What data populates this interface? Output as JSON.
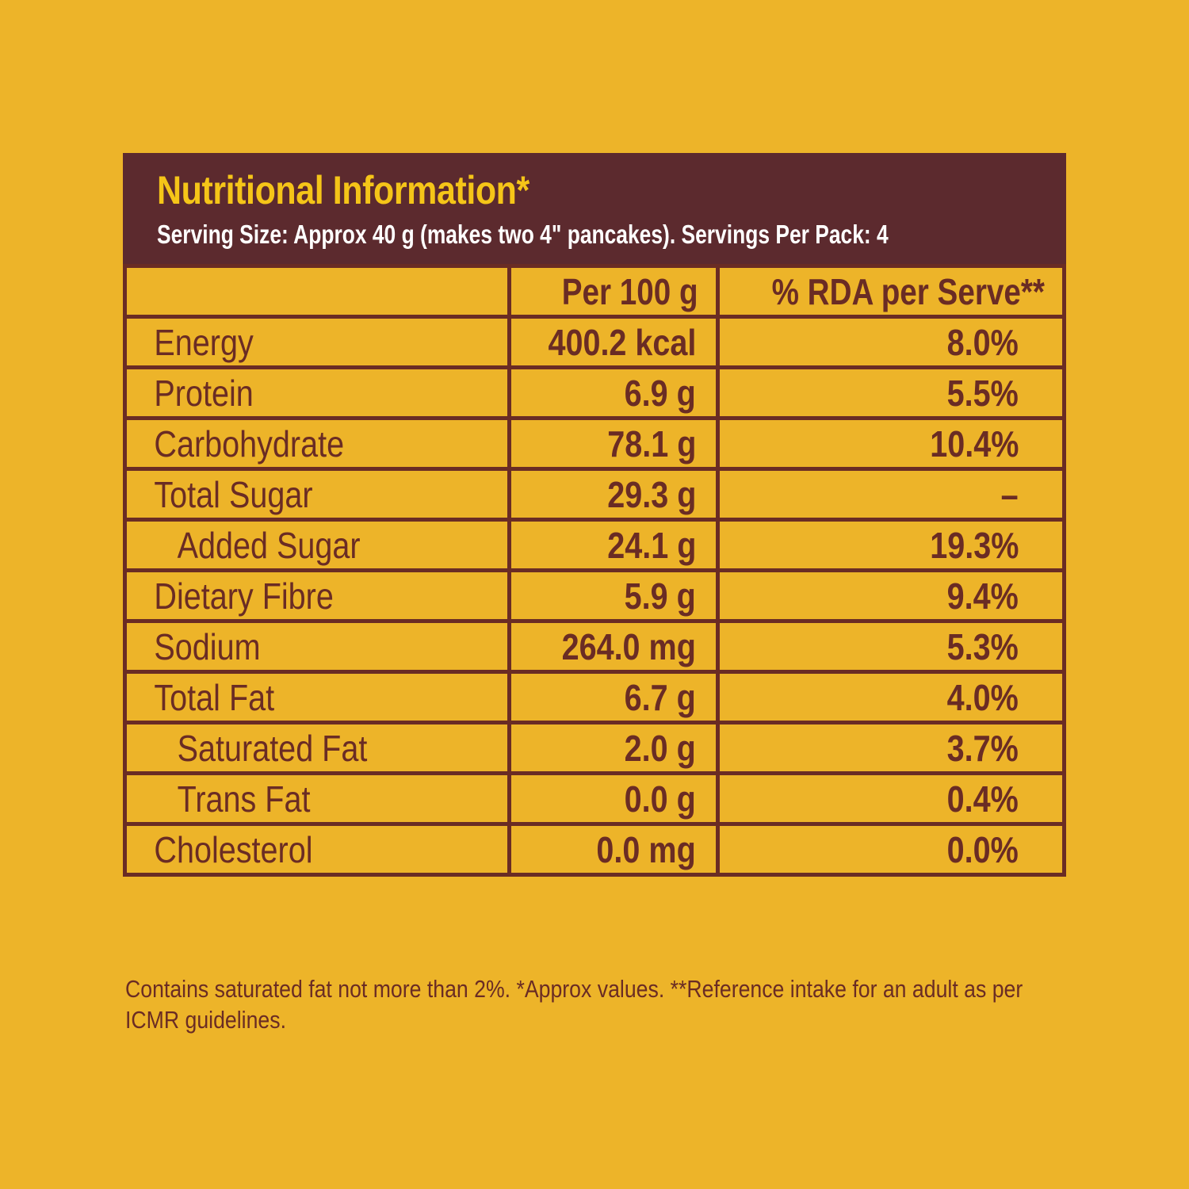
{
  "header": {
    "title": "Nutritional Information*",
    "subtitle": "Serving Size: Approx 40 g (makes two 4\" pancakes). Servings Per Pack: 4"
  },
  "table": {
    "columns": [
      "",
      "Per 100 g",
      "% RDA per Serve**"
    ],
    "rows": [
      {
        "nutrient": "Energy",
        "per100": "400.2 kcal",
        "rda": "8.0%"
      },
      {
        "nutrient": "Protein",
        "per100": "6.9 g",
        "rda": "5.5%"
      },
      {
        "nutrient": "Carbohydrate",
        "per100": "78.1 g",
        "rda": "10.4%"
      },
      {
        "nutrient": "Total Sugar",
        "per100": "29.3 g",
        "rda": "–"
      },
      {
        "nutrient": "Added Sugar",
        "per100": "24.1 g",
        "rda": "19.3%"
      },
      {
        "nutrient": "Dietary Fibre",
        "per100": "5.9 g",
        "rda": "9.4%"
      },
      {
        "nutrient": "Sodium",
        "per100": "264.0 mg",
        "rda": "5.3%"
      },
      {
        "nutrient": "Total Fat",
        "per100": "6.7 g",
        "rda": "4.0%"
      },
      {
        "nutrient": "Saturated Fat",
        "per100": "2.0 g",
        "rda": "3.7%"
      },
      {
        "nutrient": "Trans Fat",
        "per100": "0.0 g",
        "rda": "0.4%"
      },
      {
        "nutrient": "Cholesterol",
        "per100": "0.0 mg",
        "rda": "0.0%"
      }
    ]
  },
  "footnote": "Contains saturated fat not more than 2%. *Approx values. **Reference intake for an adult as per ICMR guidelines.",
  "colors": {
    "background": "#EDB429",
    "header_bg": "#5C2A2E",
    "title": "#F5C518",
    "text": "#6A2C24"
  }
}
